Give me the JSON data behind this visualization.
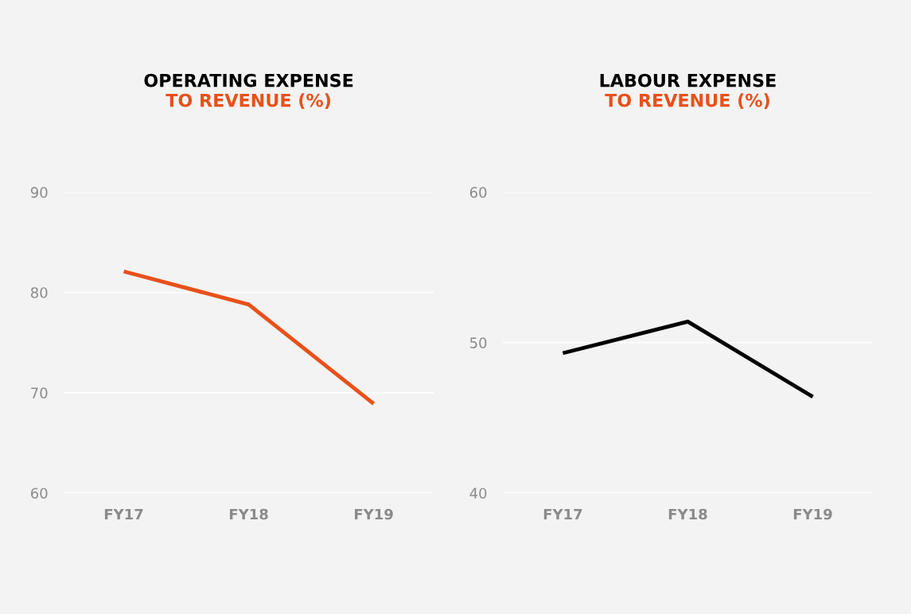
{
  "chart_data": [
    {
      "type": "line",
      "title": "OPERATING EXPENSE",
      "subtitle": "TO REVENUE (%)",
      "categories": [
        "FY17",
        "FY18",
        "FY19"
      ],
      "series": [
        {
          "color": "#e8501a",
          "values": [
            82.1,
            78.8,
            68.9
          ]
        }
      ],
      "ylim": [
        60,
        90
      ],
      "yticks": [
        60,
        70,
        80,
        90
      ],
      "grid": "y",
      "legend": false
    },
    {
      "type": "line",
      "title": "LABOUR EXPENSE",
      "subtitle": "TO REVENUE (%)",
      "categories": [
        "FY17",
        "FY18",
        "FY19"
      ],
      "series": [
        {
          "color": "#000000",
          "values": [
            49.3,
            51.4,
            46.4
          ]
        }
      ],
      "ylim": [
        40,
        60
      ],
      "yticks": [
        40,
        50,
        60
      ],
      "grid": "y",
      "legend": false
    }
  ]
}
